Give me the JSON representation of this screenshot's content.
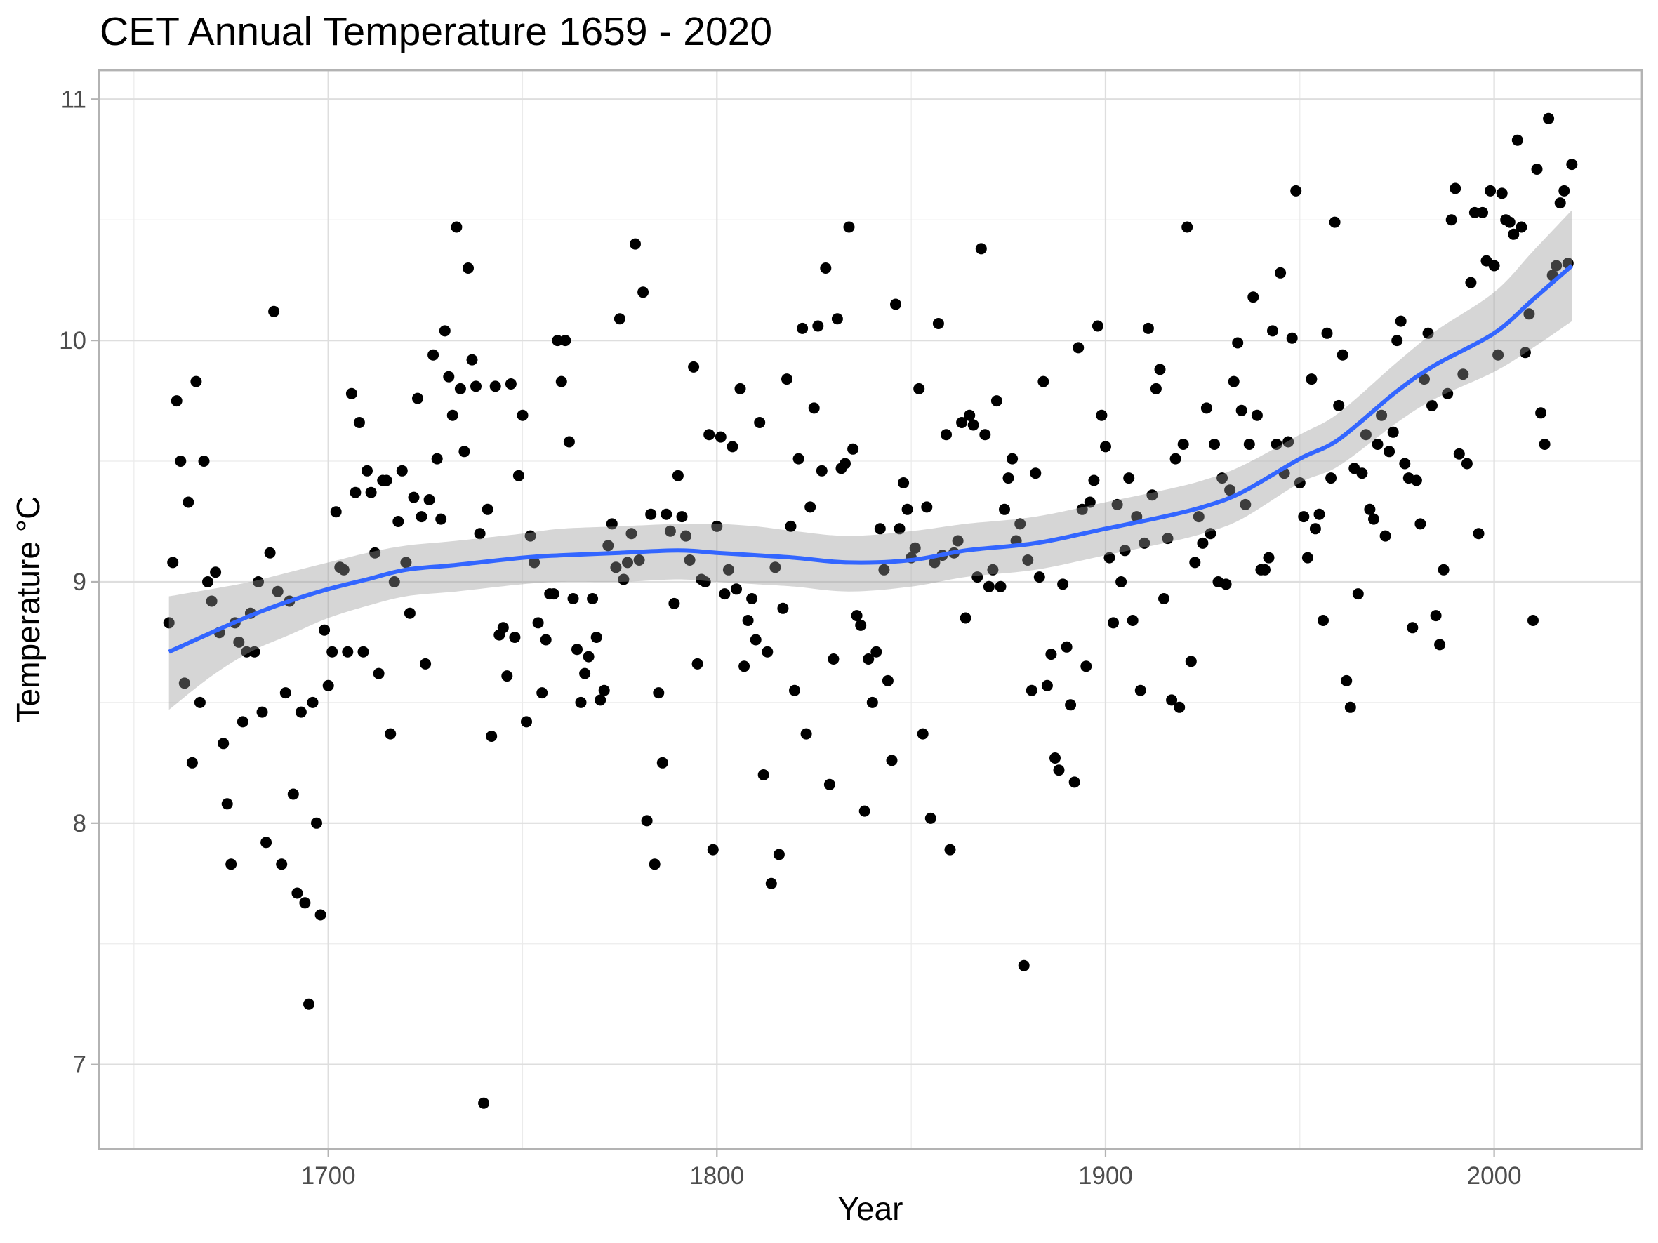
{
  "chart_data": {
    "type": "scatter",
    "title": "CET Annual Temperature 1659 - 2020",
    "xlabel": "Year",
    "ylabel": "Temperature °C",
    "xlim": [
      1641,
      2038
    ],
    "ylim": [
      6.65,
      11.12
    ],
    "x_ticks": [
      1700,
      1800,
      1900,
      2000
    ],
    "x_tick_labels": [
      "1700",
      "1800",
      "1900",
      "2000"
    ],
    "x_minor_ticks": [
      1650,
      1750,
      1850,
      1950
    ],
    "y_ticks": [
      7,
      8,
      9,
      10,
      11
    ],
    "y_tick_labels": [
      "7",
      "8",
      "9",
      "10",
      "11"
    ],
    "y_minor_ticks": [
      7.5,
      8.5,
      9.5,
      10.5
    ],
    "grid": true,
    "legend": "none",
    "colors": {
      "points": "#000000",
      "smooth_line": "#3366ff",
      "confidence_band": "#999999",
      "panel_border": "#b3b3b3",
      "grid": "#dedede"
    },
    "series": [
      {
        "name": "Annual mean temperature",
        "type": "scatter",
        "x": [
          1659,
          1660,
          1661,
          1662,
          1663,
          1664,
          1665,
          1666,
          1667,
          1668,
          1669,
          1670,
          1671,
          1672,
          1673,
          1674,
          1675,
          1676,
          1677,
          1678,
          1679,
          1680,
          1681,
          1682,
          1683,
          1684,
          1685,
          1686,
          1687,
          1688,
          1689,
          1690,
          1691,
          1692,
          1693,
          1694,
          1695,
          1696,
          1697,
          1698,
          1699,
          1700,
          1701,
          1702,
          1703,
          1704,
          1705,
          1706,
          1707,
          1708,
          1709,
          1710,
          1711,
          1712,
          1713,
          1714,
          1715,
          1716,
          1717,
          1718,
          1719,
          1720,
          1721,
          1722,
          1723,
          1724,
          1725,
          1726,
          1727,
          1728,
          1729,
          1730,
          1731,
          1732,
          1733,
          1734,
          1735,
          1736,
          1737,
          1738,
          1739,
          1740,
          1741,
          1742,
          1743,
          1744,
          1745,
          1746,
          1747,
          1748,
          1749,
          1750,
          1751,
          1752,
          1753,
          1754,
          1755,
          1756,
          1757,
          1758,
          1759,
          1760,
          1761,
          1762,
          1763,
          1764,
          1765,
          1766,
          1767,
          1768,
          1769,
          1770,
          1771,
          1772,
          1773,
          1774,
          1775,
          1776,
          1777,
          1778,
          1779,
          1780,
          1781,
          1782,
          1783,
          1784,
          1785,
          1786,
          1787,
          1788,
          1789,
          1790,
          1791,
          1792,
          1793,
          1794,
          1795,
          1796,
          1797,
          1798,
          1799,
          1800,
          1801,
          1802,
          1803,
          1804,
          1805,
          1806,
          1807,
          1808,
          1809,
          1810,
          1811,
          1812,
          1813,
          1814,
          1815,
          1816,
          1817,
          1818,
          1819,
          1820,
          1821,
          1822,
          1823,
          1824,
          1825,
          1826,
          1827,
          1828,
          1829,
          1830,
          1831,
          1832,
          1833,
          1834,
          1835,
          1836,
          1837,
          1838,
          1839,
          1840,
          1841,
          1842,
          1843,
          1844,
          1845,
          1846,
          1847,
          1848,
          1849,
          1850,
          1851,
          1852,
          1853,
          1854,
          1855,
          1856,
          1857,
          1858,
          1859,
          1860,
          1861,
          1862,
          1863,
          1864,
          1865,
          1866,
          1867,
          1868,
          1869,
          1870,
          1871,
          1872,
          1873,
          1874,
          1875,
          1876,
          1877,
          1878,
          1879,
          1880,
          1881,
          1882,
          1883,
          1884,
          1885,
          1886,
          1887,
          1888,
          1889,
          1890,
          1891,
          1892,
          1893,
          1894,
          1895,
          1896,
          1897,
          1898,
          1899,
          1900,
          1901,
          1902,
          1903,
          1904,
          1905,
          1906,
          1907,
          1908,
          1909,
          1910,
          1911,
          1912,
          1913,
          1914,
          1915,
          1916,
          1917,
          1918,
          1919,
          1920,
          1921,
          1922,
          1923,
          1924,
          1925,
          1926,
          1927,
          1928,
          1929,
          1930,
          1931,
          1932,
          1933,
          1934,
          1935,
          1936,
          1937,
          1938,
          1939,
          1940,
          1941,
          1942,
          1943,
          1944,
          1945,
          1946,
          1947,
          1948,
          1949,
          1950,
          1951,
          1952,
          1953,
          1954,
          1955,
          1956,
          1957,
          1958,
          1959,
          1960,
          1961,
          1962,
          1963,
          1964,
          1965,
          1966,
          1967,
          1968,
          1969,
          1970,
          1971,
          1972,
          1973,
          1974,
          1975,
          1976,
          1977,
          1978,
          1979,
          1980,
          1981,
          1982,
          1983,
          1984,
          1985,
          1986,
          1987,
          1988,
          1989,
          1990,
          1991,
          1992,
          1993,
          1994,
          1995,
          1996,
          1997,
          1998,
          1999,
          2000,
          2001,
          2002,
          2003,
          2004,
          2005,
          2006,
          2007,
          2008,
          2009,
          2010,
          2011,
          2012,
          2013,
          2014,
          2015,
          2016,
          2017,
          2018,
          2019,
          2020
        ],
        "y": [
          8.83,
          9.08,
          9.75,
          9.5,
          8.58,
          9.33,
          8.25,
          9.83,
          8.5,
          9.5,
          9.0,
          8.92,
          9.04,
          8.79,
          8.33,
          8.08,
          7.83,
          8.83,
          8.75,
          8.42,
          8.71,
          8.87,
          8.71,
          9.0,
          8.46,
          7.92,
          9.12,
          10.12,
          8.96,
          7.83,
          8.54,
          8.92,
          8.12,
          7.71,
          8.46,
          7.67,
          7.25,
          8.5,
          8.0,
          7.62,
          8.8,
          8.57,
          8.71,
          9.29,
          9.06,
          9.05,
          8.71,
          9.78,
          9.37,
          9.66,
          8.71,
          9.46,
          9.37,
          9.12,
          8.62,
          9.42,
          9.42,
          8.37,
          9.0,
          9.25,
          9.46,
          9.08,
          8.87,
          9.35,
          9.76,
          9.27,
          8.66,
          9.34,
          9.94,
          9.51,
          9.26,
          10.04,
          9.85,
          9.69,
          10.47,
          9.8,
          9.54,
          10.3,
          9.92,
          9.81,
          9.2,
          6.84,
          9.3,
          8.36,
          9.81,
          8.78,
          8.81,
          8.61,
          9.82,
          8.77,
          9.44,
          9.69,
          8.42,
          9.19,
          9.08,
          8.83,
          8.54,
          8.76,
          8.95,
          8.95,
          10.0,
          9.83,
          10.0,
          9.58,
          8.93,
          8.72,
          8.5,
          8.62,
          8.69,
          8.93,
          8.77,
          8.51,
          8.55,
          9.15,
          9.24,
          9.06,
          10.09,
          9.01,
          9.08,
          9.2,
          10.4,
          9.09,
          10.2,
          8.01,
          9.28,
          7.83,
          8.54,
          8.25,
          9.28,
          9.21,
          8.91,
          9.44,
          9.27,
          9.19,
          9.09,
          9.89,
          8.66,
          9.01,
          9.0,
          9.61,
          7.89,
          9.23,
          9.6,
          8.95,
          9.05,
          9.56,
          8.97,
          9.8,
          8.65,
          8.84,
          8.93,
          8.76,
          9.66,
          8.2,
          8.71,
          7.75,
          9.06,
          7.87,
          8.89,
          9.84,
          9.23,
          8.55,
          9.51,
          10.05,
          8.37,
          9.31,
          9.72,
          10.06,
          9.46,
          10.3,
          8.16,
          8.68,
          10.09,
          9.47,
          9.49,
          10.47,
          9.55,
          8.86,
          8.82,
          8.05,
          8.68,
          8.5,
          8.71,
          9.22,
          9.05,
          8.59,
          8.26,
          10.15,
          9.22,
          9.41,
          9.3,
          9.1,
          9.14,
          9.8,
          8.37,
          9.31,
          8.02,
          9.08,
          10.07,
          9.11,
          9.61,
          7.89,
          9.12,
          9.17,
          9.66,
          8.85,
          9.69,
          9.65,
          9.02,
          10.38,
          9.61,
          8.98,
          9.05,
          9.75,
          8.98,
          9.3,
          9.43,
          9.51,
          9.17,
          9.24,
          7.41,
          9.09,
          8.55,
          9.45,
          9.02,
          9.83,
          8.57,
          8.7,
          8.27,
          8.22,
          8.99,
          8.73,
          8.49,
          8.17,
          9.97,
          9.3,
          8.65,
          9.33,
          9.42,
          10.06,
          9.69,
          9.56,
          9.1,
          8.83,
          9.32,
          9.0,
          9.13,
          9.43,
          8.84,
          9.27,
          8.55,
          9.16,
          10.05,
          9.36,
          9.8,
          9.88,
          8.93,
          9.18,
          8.51,
          9.51,
          8.48,
          9.57,
          10.47,
          8.67,
          9.08,
          9.27,
          9.16,
          9.72,
          9.2,
          9.57,
          9.0,
          9.43,
          8.99,
          9.38,
          9.83,
          9.99,
          9.71,
          9.32,
          9.57,
          10.18,
          9.69,
          9.05,
          9.05,
          9.1,
          10.04,
          9.57,
          10.28,
          9.45,
          9.58,
          10.01,
          10.62,
          9.41,
          9.27,
          9.1,
          9.84,
          9.22,
          9.28,
          8.84,
          10.03,
          9.43,
          10.49,
          9.73,
          9.94,
          8.59,
          8.48,
          9.47,
          8.95,
          9.45,
          9.61,
          9.3,
          9.26,
          9.57,
          9.69,
          9.19,
          9.54,
          9.62,
          10.0,
          10.08,
          9.49,
          9.43,
          8.81,
          9.42,
          9.24,
          9.84,
          10.03,
          9.73,
          8.86,
          8.74,
          9.05,
          9.78,
          10.5,
          10.63,
          9.53,
          9.86,
          9.49,
          10.24,
          10.53,
          9.2,
          10.53,
          10.33,
          10.62,
          10.31,
          9.94,
          10.61,
          10.5,
          10.49,
          10.44,
          10.83,
          10.47,
          9.95,
          10.11,
          8.84,
          10.71,
          9.7,
          9.57,
          10.92,
          10.27,
          10.31,
          10.57,
          10.62,
          10.32,
          10.73
        ]
      },
      {
        "name": "LOESS smooth",
        "type": "line",
        "x": [
          1659,
          1670,
          1680,
          1690,
          1700,
          1710,
          1720,
          1733,
          1750,
          1760,
          1775,
          1790,
          1800,
          1810,
          1820,
          1834,
          1850,
          1864,
          1882,
          1900,
          1915,
          1925,
          1935,
          1950,
          1960,
          1975,
          1985,
          2000,
          2010,
          2020
        ],
        "y": [
          8.71,
          8.79,
          8.86,
          8.92,
          8.97,
          9.01,
          9.05,
          9.07,
          9.1,
          9.11,
          9.12,
          9.13,
          9.12,
          9.11,
          9.1,
          9.08,
          9.09,
          9.13,
          9.16,
          9.22,
          9.27,
          9.31,
          9.37,
          9.51,
          9.59,
          9.79,
          9.9,
          10.03,
          10.17,
          10.31
        ],
        "lower": [
          8.47,
          8.61,
          8.71,
          8.78,
          8.85,
          8.9,
          8.94,
          8.96,
          8.99,
          9.0,
          9.0,
          9.01,
          9.0,
          8.99,
          8.98,
          8.96,
          8.98,
          9.02,
          9.05,
          9.11,
          9.16,
          9.2,
          9.26,
          9.41,
          9.48,
          9.66,
          9.76,
          9.87,
          9.97,
          10.08
        ],
        "upper": [
          8.94,
          8.97,
          9.0,
          9.04,
          9.08,
          9.12,
          9.15,
          9.17,
          9.2,
          9.22,
          9.23,
          9.24,
          9.24,
          9.23,
          9.21,
          9.19,
          9.21,
          9.24,
          9.27,
          9.33,
          9.38,
          9.42,
          9.48,
          9.61,
          9.7,
          9.91,
          10.04,
          10.2,
          10.37,
          10.54
        ]
      }
    ]
  }
}
